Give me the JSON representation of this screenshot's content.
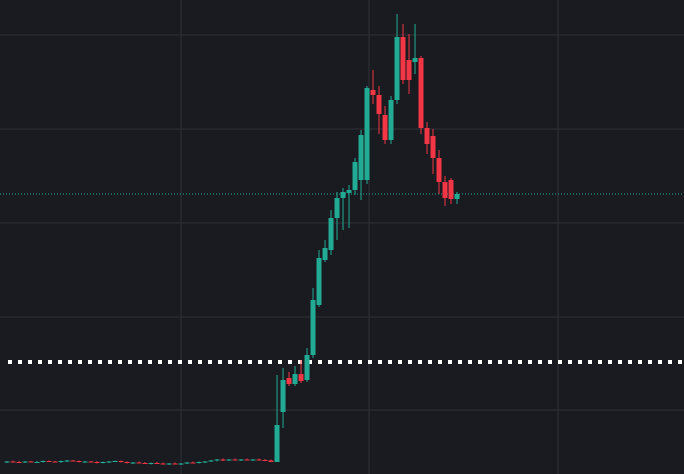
{
  "chart_data": {
    "type": "candlestick",
    "up_color": "#22ab94",
    "down_color": "#f23645",
    "grid_color": "#2e3038",
    "ylim": [
      0,
      474
    ],
    "xlim": [
      -1.17,
      112.83
    ],
    "ygrid": [
      439,
      345,
      251,
      157,
      64
    ],
    "xgrid": [
      29,
      60.33,
      91.83
    ],
    "price_line": {
      "value": 280,
      "color": "#22ab94"
    },
    "level_line": {
      "value": 112,
      "color": "#ffffff"
    },
    "ohlc": [
      [
        12,
        13,
        11,
        12.5
      ],
      [
        12.5,
        13.5,
        11.5,
        12
      ],
      [
        12,
        13,
        11,
        11.5
      ],
      [
        11.5,
        13,
        11,
        12.5
      ],
      [
        12.5,
        13,
        11.5,
        12
      ],
      [
        12,
        13,
        11,
        12
      ],
      [
        12,
        13.5,
        11.5,
        13
      ],
      [
        13,
        13.5,
        12,
        12.5
      ],
      [
        12.5,
        13,
        11.5,
        12
      ],
      [
        12,
        13.5,
        11,
        13
      ],
      [
        13,
        14,
        12,
        13.5
      ],
      [
        13.5,
        14,
        12.5,
        13
      ],
      [
        13,
        13.5,
        11.5,
        12
      ],
      [
        12,
        13,
        11,
        12.5
      ],
      [
        12.5,
        13,
        11.5,
        12
      ],
      [
        12,
        13,
        10.5,
        11
      ],
      [
        11,
        12.5,
        10.5,
        12
      ],
      [
        12,
        13,
        11,
        12.5
      ],
      [
        12.5,
        13.5,
        12,
        13
      ],
      [
        13,
        13.5,
        11.5,
        12
      ],
      [
        12,
        12.5,
        10.5,
        11
      ],
      [
        11,
        12,
        10,
        11.5
      ],
      [
        11.5,
        12.5,
        10.5,
        11
      ],
      [
        11,
        12,
        10,
        10.5
      ],
      [
        10.5,
        11.5,
        9.5,
        11
      ],
      [
        11,
        12,
        10,
        10.5
      ],
      [
        10.5,
        11.5,
        9.5,
        10
      ],
      [
        10,
        11,
        9,
        10.5
      ],
      [
        10.5,
        11.5,
        9.5,
        10
      ],
      [
        10,
        11,
        9,
        10.5
      ],
      [
        10.5,
        12,
        10,
        11.5
      ],
      [
        11.5,
        12.5,
        10.5,
        11
      ],
      [
        11,
        12.5,
        10.5,
        12
      ],
      [
        12,
        13,
        11,
        12.5
      ],
      [
        12.5,
        14,
        12,
        13.5
      ],
      [
        13.5,
        15,
        12.5,
        14.5
      ],
      [
        14.5,
        15.5,
        13,
        13.5
      ],
      [
        13.5,
        15,
        13,
        14.5
      ],
      [
        14.5,
        15.5,
        13.5,
        14
      ],
      [
        14,
        15,
        13,
        14.5
      ],
      [
        14.5,
        15.5,
        13.5,
        14
      ],
      [
        14,
        15,
        13,
        14.5
      ],
      [
        14.5,
        15.5,
        13.5,
        14
      ],
      [
        14,
        15,
        13,
        13.5
      ],
      [
        13.5,
        14.5,
        12,
        12
      ],
      [
        12,
        99,
        12,
        49
      ],
      [
        62,
        106,
        46,
        94
      ],
      [
        96,
        102,
        88,
        90
      ],
      [
        90,
        108,
        88,
        100
      ],
      [
        100,
        114,
        91,
        93
      ],
      [
        94,
        126,
        92,
        119
      ],
      [
        119,
        186,
        116,
        174
      ],
      [
        169,
        224,
        167,
        216
      ],
      [
        214,
        234,
        212,
        226
      ],
      [
        224,
        264,
        219,
        256
      ],
      [
        256,
        282,
        234,
        276
      ],
      [
        276,
        286,
        244,
        282
      ],
      [
        281,
        289,
        246,
        284
      ],
      [
        284,
        316,
        279,
        312
      ],
      [
        294,
        344,
        274,
        339
      ],
      [
        294,
        388,
        290,
        386
      ],
      [
        384,
        404,
        370,
        379
      ],
      [
        379,
        388,
        340,
        360
      ],
      [
        359,
        368,
        330,
        334
      ],
      [
        334,
        378,
        330,
        374
      ],
      [
        374,
        460,
        370,
        437
      ],
      [
        437,
        450,
        390,
        394
      ],
      [
        414,
        440,
        380,
        394
      ],
      [
        412,
        450,
        400,
        416
      ],
      [
        416,
        418,
        340,
        346
      ],
      [
        346,
        352,
        320,
        330
      ],
      [
        338,
        345,
        300,
        316
      ],
      [
        316,
        324,
        280,
        292
      ],
      [
        292,
        298,
        268,
        276
      ],
      [
        294,
        296,
        270,
        275
      ],
      [
        275,
        282,
        270,
        280
      ]
    ]
  }
}
